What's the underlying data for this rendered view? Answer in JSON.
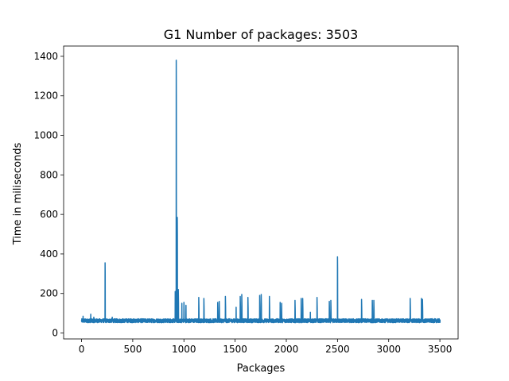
{
  "chart_data": {
    "type": "line",
    "title": "G1  Number of packages: 3503",
    "xlabel": "Packages",
    "ylabel": "Time in miliseconds",
    "xlim": [
      -175,
      3678
    ],
    "ylim": [
      -30,
      1452
    ],
    "xticks": [
      0,
      500,
      1000,
      1500,
      2000,
      2500,
      3000,
      3500
    ],
    "yticks": [
      0,
      200,
      400,
      600,
      800,
      1000,
      1200,
      1400
    ],
    "grid": false,
    "series": [
      {
        "color": "#1f77b4",
        "baseline": 62,
        "noise": 10,
        "spikes": [
          {
            "x": 15,
            "y": 85
          },
          {
            "x": 90,
            "y": 95
          },
          {
            "x": 120,
            "y": 80
          },
          {
            "x": 230,
            "y": 355
          },
          {
            "x": 300,
            "y": 80
          },
          {
            "x": 915,
            "y": 210
          },
          {
            "x": 925,
            "y": 1380
          },
          {
            "x": 935,
            "y": 585
          },
          {
            "x": 945,
            "y": 220
          },
          {
            "x": 980,
            "y": 150
          },
          {
            "x": 1000,
            "y": 155
          },
          {
            "x": 1020,
            "y": 140
          },
          {
            "x": 1145,
            "y": 180
          },
          {
            "x": 1195,
            "y": 175
          },
          {
            "x": 1330,
            "y": 155
          },
          {
            "x": 1345,
            "y": 160
          },
          {
            "x": 1405,
            "y": 185
          },
          {
            "x": 1510,
            "y": 130
          },
          {
            "x": 1550,
            "y": 185
          },
          {
            "x": 1565,
            "y": 195
          },
          {
            "x": 1625,
            "y": 180
          },
          {
            "x": 1740,
            "y": 190
          },
          {
            "x": 1755,
            "y": 195
          },
          {
            "x": 1835,
            "y": 185
          },
          {
            "x": 1940,
            "y": 155
          },
          {
            "x": 1955,
            "y": 150
          },
          {
            "x": 2085,
            "y": 165
          },
          {
            "x": 2145,
            "y": 175
          },
          {
            "x": 2160,
            "y": 175
          },
          {
            "x": 2235,
            "y": 105
          },
          {
            "x": 2300,
            "y": 180
          },
          {
            "x": 2420,
            "y": 160
          },
          {
            "x": 2435,
            "y": 165
          },
          {
            "x": 2500,
            "y": 385
          },
          {
            "x": 2735,
            "y": 170
          },
          {
            "x": 2840,
            "y": 165
          },
          {
            "x": 2855,
            "y": 165
          },
          {
            "x": 3210,
            "y": 175
          },
          {
            "x": 3320,
            "y": 175
          },
          {
            "x": 3330,
            "y": 170
          }
        ],
        "n_points": 3503
      }
    ]
  }
}
